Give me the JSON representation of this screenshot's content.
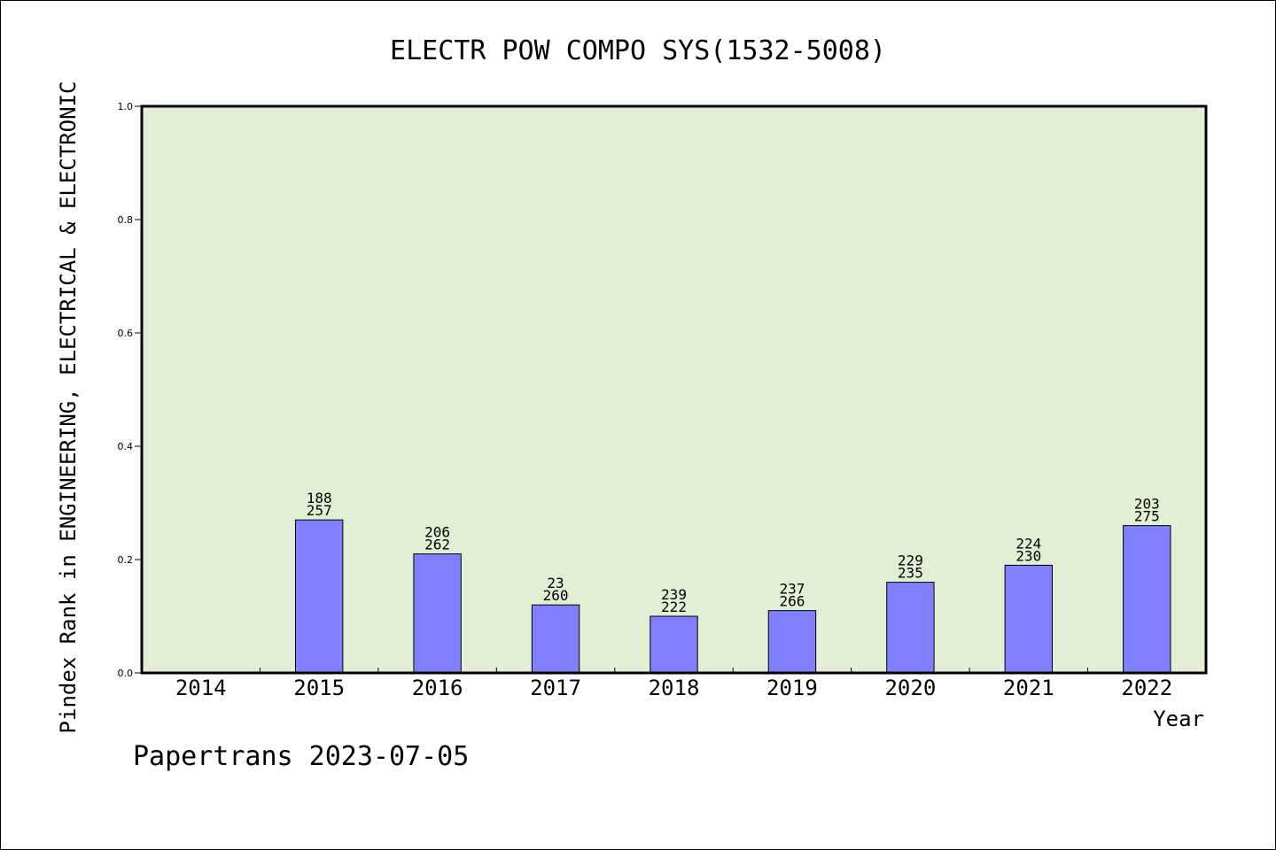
{
  "chart_data": {
    "type": "bar",
    "title": "ELECTR POW COMPO SYS(1532-5008)",
    "ylabel": "Pindex Rank in ENGINEERING, ELECTRICAL & ELECTRONIC",
    "xlabel": "Year",
    "ylim": [
      0,
      1.0
    ],
    "yticks": [
      "0.0",
      "0.2",
      "0.4",
      "0.6",
      "0.8",
      "1.0"
    ],
    "categories": [
      "2014",
      "2015",
      "2016",
      "2017",
      "2018",
      "2019",
      "2020",
      "2021",
      "2022"
    ],
    "values": [
      null,
      0.27,
      0.21,
      0.12,
      0.1,
      0.11,
      0.16,
      0.19,
      0.26
    ],
    "label_top": [
      "",
      "188",
      "206",
      "23",
      "239",
      "237",
      "229",
      "224",
      "203"
    ],
    "label_bottom": [
      "",
      "257",
      "262",
      "260",
      "222",
      "266",
      "235",
      "230",
      "275"
    ],
    "grid": false,
    "colors": {
      "plot_background": "#e2efd5",
      "bar_fill": "#8080ff",
      "bar_stroke": "#000000"
    }
  },
  "footer": "Papertrans 2023-07-05"
}
